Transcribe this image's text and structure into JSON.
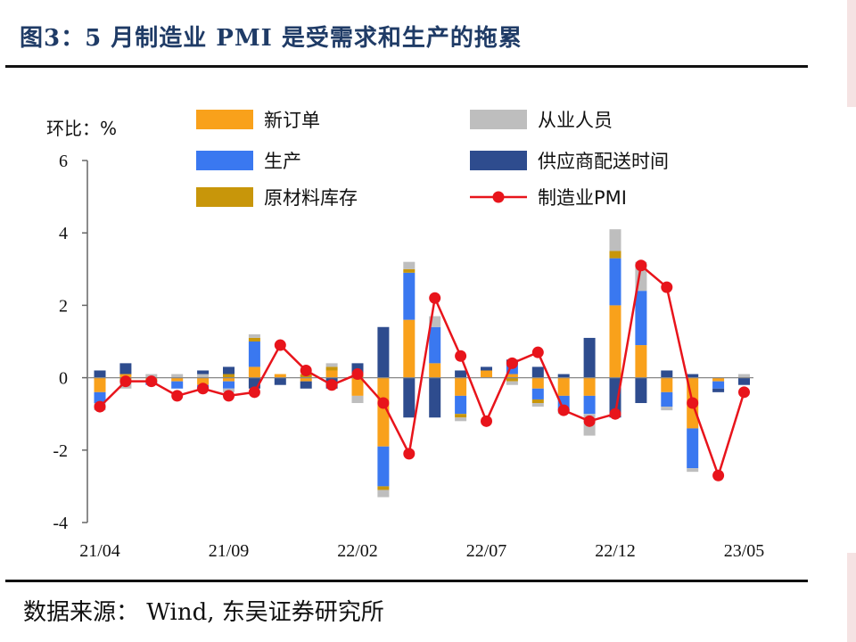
{
  "figure": {
    "title": "图3：5 月制造业 PMI 是受需求和生产的拖累",
    "source": "数据来源： Wind, 东吴证券研究所"
  },
  "chart_data": {
    "type": "bar",
    "stacked": true,
    "ylabel": "环比：%",
    "ylim": [
      -4,
      6
    ],
    "yticks": [
      -4,
      -2,
      0,
      2,
      4,
      6
    ],
    "grid": false,
    "legend_position": "top",
    "categories": [
      "21/04",
      "21/05",
      "21/06",
      "21/07",
      "21/08",
      "21/09",
      "21/10",
      "21/11",
      "21/12",
      "22/01",
      "22/02",
      "22/03",
      "22/04",
      "22/05",
      "22/06",
      "22/07",
      "22/08",
      "22/09",
      "22/10",
      "22/11",
      "22/12",
      "23/01",
      "23/02",
      "23/03",
      "23/04",
      "23/05"
    ],
    "x_tick_labels": [
      "21/04",
      "21/09",
      "22/02",
      "22/07",
      "22/12",
      "23/05"
    ],
    "series": [
      {
        "name": "新订单",
        "color": "#F9A11B",
        "values": [
          -0.4,
          0.1,
          -0.1,
          -0.1,
          -0.2,
          -0.1,
          0.3,
          0.1,
          -0.1,
          0.2,
          -0.5,
          -1.9,
          1.6,
          0.4,
          -0.5,
          0.2,
          0.1,
          -0.3,
          -0.5,
          -0.5,
          2.0,
          0.9,
          -0.4,
          -1.4,
          -0.1,
          0.0
        ]
      },
      {
        "name": "生产",
        "color": "#3A78F0",
        "values": [
          -0.3,
          0.0,
          -0.1,
          -0.2,
          -0.1,
          -0.2,
          0.7,
          0.0,
          0.0,
          0.0,
          0.0,
          -1.1,
          1.3,
          1.0,
          -0.5,
          0.0,
          0.3,
          -0.3,
          -0.4,
          -0.5,
          1.3,
          1.5,
          -0.4,
          -1.1,
          -0.2,
          0.0
        ]
      },
      {
        "name": "原材料库存",
        "color": "#C8960A",
        "values": [
          0.0,
          -0.1,
          0.0,
          0.0,
          0.0,
          0.1,
          0.1,
          0.0,
          0.1,
          0.1,
          0.1,
          -0.1,
          0.1,
          0.0,
          -0.1,
          0.0,
          -0.1,
          -0.1,
          0.0,
          0.0,
          0.2,
          0.0,
          0.0,
          0.0,
          0.0,
          0.0
        ]
      },
      {
        "name": "从业人员",
        "color": "#BEBEBE",
        "values": [
          -0.2,
          -0.2,
          0.1,
          0.1,
          0.1,
          -0.1,
          0.1,
          0.0,
          0.0,
          0.1,
          -0.2,
          -0.2,
          0.2,
          0.3,
          -0.1,
          0.0,
          -0.1,
          -0.1,
          -0.1,
          -0.6,
          0.6,
          0.8,
          -0.1,
          -0.1,
          0.0,
          0.1
        ]
      },
      {
        "name": "供应商配送时间",
        "color": "#2E4C8E",
        "values": [
          0.2,
          0.3,
          0.0,
          0.0,
          0.1,
          0.2,
          -0.3,
          -0.2,
          -0.2,
          -0.3,
          0.3,
          1.4,
          -1.1,
          -1.1,
          0.2,
          0.1,
          0.1,
          0.3,
          0.1,
          1.1,
          -1.1,
          -0.7,
          0.2,
          0.1,
          -0.1,
          -0.2
        ]
      }
    ],
    "line": {
      "name": "制造业PMI",
      "color": "#E8141B",
      "values": [
        -0.8,
        -0.1,
        -0.1,
        -0.5,
        -0.3,
        -0.5,
        -0.4,
        0.9,
        0.2,
        -0.2,
        0.1,
        -0.7,
        -2.1,
        2.2,
        0.6,
        -1.2,
        0.4,
        0.7,
        -0.9,
        -1.2,
        -1.0,
        3.1,
        2.5,
        -0.7,
        -2.7,
        -0.4
      ]
    }
  }
}
